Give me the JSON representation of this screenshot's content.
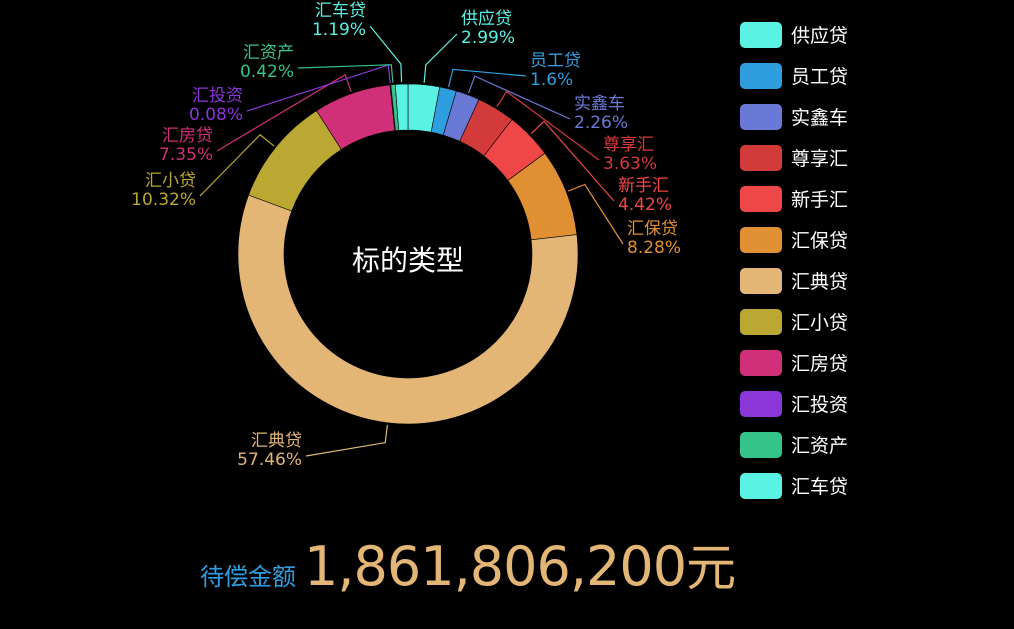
{
  "chart_data": {
    "type": "pie",
    "title": "标的类型",
    "series": [
      {
        "name": "供应贷",
        "percent_label": "2.99%",
        "value": 2.99,
        "color": "#5af3e3"
      },
      {
        "name": "员工贷",
        "percent_label": "1.6%",
        "value": 1.6,
        "color": "#2f9ede"
      },
      {
        "name": "实鑫车",
        "percent_label": "2.26%",
        "value": 2.26,
        "color": "#6a79d6"
      },
      {
        "name": "尊享汇",
        "percent_label": "3.63%",
        "value": 3.63,
        "color": "#d33a3a"
      },
      {
        "name": "新手汇",
        "percent_label": "4.42%",
        "value": 4.42,
        "color": "#ef4748"
      },
      {
        "name": "汇保贷",
        "percent_label": "8.28%",
        "value": 8.28,
        "color": "#e08f32"
      },
      {
        "name": "汇典贷",
        "percent_label": "57.46%",
        "value": 57.46,
        "color": "#e3b676"
      },
      {
        "name": "汇小贷",
        "percent_label": "10.32%",
        "value": 10.32,
        "color": "#bba832"
      },
      {
        "name": "汇房贷",
        "percent_label": "7.35%",
        "value": 7.35,
        "color": "#cf3077"
      },
      {
        "name": "汇投资",
        "percent_label": "0.08%",
        "value": 0.08,
        "color": "#8a36d8"
      },
      {
        "name": "汇资产",
        "percent_label": "0.42%",
        "value": 0.42,
        "color": "#34c48a"
      },
      {
        "name": "汇车贷",
        "percent_label": "1.19%",
        "value": 1.19,
        "color": "#5af3e3"
      }
    ],
    "legend_position": "right"
  },
  "footer": {
    "label": "待偿金额",
    "amount": "1,861,806,200",
    "unit": "元"
  }
}
